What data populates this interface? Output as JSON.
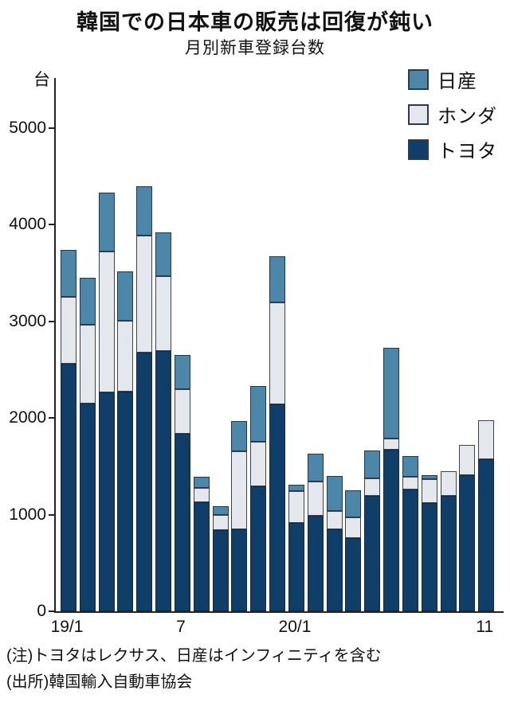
{
  "title": "韓国での日本車の販売は回復が鈍い",
  "subtitle": "月別新車登録台数",
  "legend": {
    "position": "top-right",
    "items": [
      {
        "label": "日産",
        "color": "#4c86a8"
      },
      {
        "label": "ホンダ",
        "color": "#e4e8ec"
      },
      {
        "label": "トヨタ",
        "color": "#0f3f69"
      }
    ]
  },
  "notes": [
    "(注)トヨタはレクサス、日産はインフィニティを含む",
    "(出所)韓国輸入自動車協会"
  ],
  "chart_data": {
    "type": "bar",
    "stacked": true,
    "title": "月別新車登録台数",
    "xlabel": "",
    "ylabel": "台",
    "ylim": [
      0,
      5000
    ],
    "y_ticks": [
      0,
      1000,
      2000,
      3000,
      4000,
      5000
    ],
    "grid": false,
    "legend_position": "top-right",
    "categories": [
      "19/1",
      "19/2",
      "19/3",
      "19/4",
      "19/5",
      "19/6",
      "19/7",
      "19/8",
      "19/9",
      "19/10",
      "19/11",
      "19/12",
      "20/1",
      "20/2",
      "20/3",
      "20/4",
      "20/5",
      "20/6",
      "20/7",
      "20/8",
      "20/9",
      "20/10",
      "20/11"
    ],
    "x_axis_labels": [
      {
        "index": 0,
        "label": "19/1"
      },
      {
        "index": 6,
        "label": "7"
      },
      {
        "index": 12,
        "label": "20/1"
      },
      {
        "index": 22,
        "label": "11"
      }
    ],
    "series": [
      {
        "name": "トヨタ",
        "color": "#0f3f69",
        "border": "#16293c",
        "values": [
          2560,
          2150,
          2265,
          2270,
          2680,
          2690,
          1835,
          1130,
          840,
          850,
          1290,
          2140,
          915,
          985,
          850,
          760,
          1195,
          1670,
          1260,
          1120,
          1195,
          1405,
          1570
        ]
      },
      {
        "name": "ホンダ",
        "color": "#e4e8ec",
        "border": "#3a4450",
        "values": [
          690,
          815,
          1460,
          740,
          1210,
          775,
          465,
          150,
          160,
          805,
          465,
          1060,
          325,
          355,
          185,
          210,
          180,
          115,
          130,
          245,
          255,
          320,
          410
        ]
      },
      {
        "name": "日産",
        "color": "#4c86a8",
        "border": "#1d3850",
        "values": [
          490,
          490,
          610,
          510,
          510,
          455,
          355,
          110,
          90,
          310,
          580,
          470,
          70,
          290,
          365,
          280,
          285,
          940,
          215,
          45,
          0,
          0,
          0
        ]
      }
    ],
    "totals": [
      3740,
      3455,
      4335,
      3520,
      4400,
      3920,
      2655,
      1390,
      1090,
      1965,
      2335,
      3670,
      1310,
      1630,
      1400,
      1250,
      1660,
      2725,
      1605,
      1410,
      1450,
      1725,
      1980
    ]
  }
}
